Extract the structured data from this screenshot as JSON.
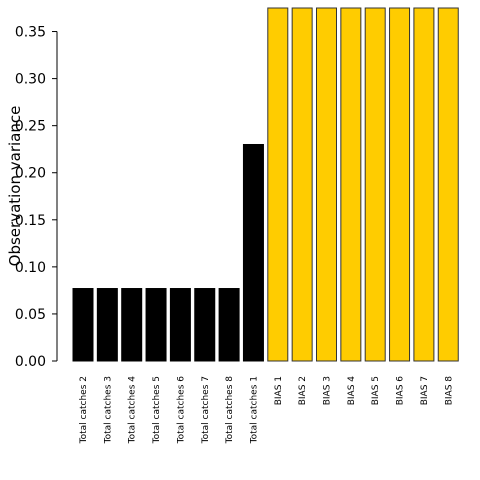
{
  "chart_data": {
    "type": "bar",
    "title": "",
    "xlabel": "",
    "ylabel": "Observation variance",
    "ylim": [
      0,
      0.375
    ],
    "yticks": [
      "0.00",
      "0.05",
      "0.10",
      "0.15",
      "0.20",
      "0.25",
      "0.30",
      "0.35"
    ],
    "ytick_values": [
      0,
      0.05,
      0.1,
      0.15,
      0.2,
      0.25,
      0.3,
      0.35
    ],
    "grid": false,
    "categories": [
      "Total catches 2",
      "Total catches 3",
      "Total catches 4",
      "Total catches 5",
      "Total catches 6",
      "Total catches 7",
      "Total catches 8",
      "Total catches 1",
      "BIAS 1",
      "BIAS 2",
      "BIAS 3",
      "BIAS 4",
      "BIAS 5",
      "BIAS 6",
      "BIAS 7",
      "BIAS 8"
    ],
    "values": [
      0.077,
      0.077,
      0.077,
      0.077,
      0.077,
      0.077,
      0.077,
      0.23,
      0.375,
      0.375,
      0.375,
      0.375,
      0.375,
      0.375,
      0.375,
      0.375
    ],
    "colors": [
      "#000000",
      "#000000",
      "#000000",
      "#000000",
      "#000000",
      "#000000",
      "#000000",
      "#000000",
      "#ffcc00",
      "#ffcc00",
      "#ffcc00",
      "#ffcc00",
      "#ffcc00",
      "#ffcc00",
      "#ffcc00",
      "#ffcc00"
    ]
  }
}
